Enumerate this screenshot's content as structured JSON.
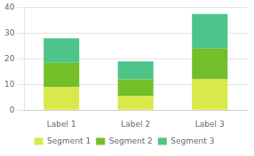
{
  "chart_data": {
    "type": "bar",
    "stacked": true,
    "categories": [
      "Label 1",
      "Label 2",
      "Label 3"
    ],
    "series": [
      {
        "name": "Segment 1",
        "color": "#d9e84a",
        "values": [
          9.0,
          5.5,
          12.0
        ]
      },
      {
        "name": "Segment 2",
        "color": "#72bf2a",
        "values": [
          9.5,
          6.5,
          12.0
        ]
      },
      {
        "name": "Segment 3",
        "color": "#4dc48a",
        "values": [
          9.5,
          7.0,
          13.5
        ]
      }
    ],
    "ylim": [
      0,
      40
    ],
    "yticks": [
      0,
      10,
      20,
      30,
      40
    ],
    "grid": true,
    "legend": "bottom"
  }
}
